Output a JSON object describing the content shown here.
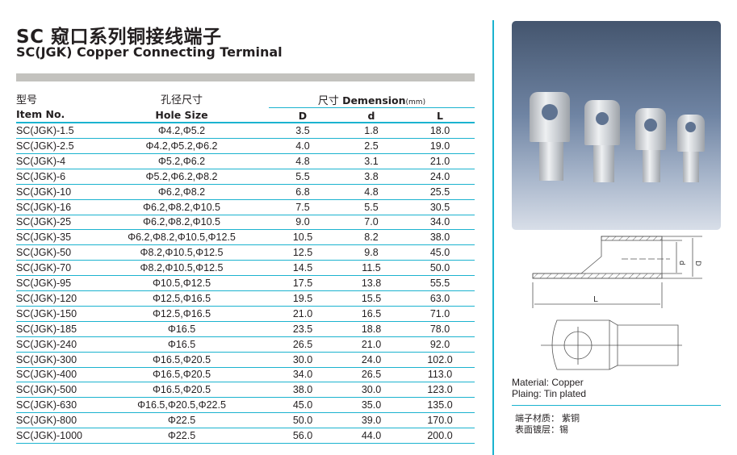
{
  "title_cn": "SC 窥口系列铜接线端子",
  "title_en": "SC(JGK) Copper Connecting Terminal",
  "header": {
    "item_cn": "型号",
    "item_en": "Item No.",
    "hole_cn": "孔径尺寸",
    "hole_en": "Hole Size",
    "dim_cn": "尺寸",
    "dim_en": "Demension",
    "dim_unit": "(mm)",
    "D": "D",
    "d": "d",
    "L": "L"
  },
  "rows": [
    [
      "SC(JGK)-1.5",
      "Φ4.2,Φ5.2",
      "3.5",
      "1.8",
      "18.0"
    ],
    [
      "SC(JGK)-2.5",
      "Φ4.2,Φ5.2,Φ6.2",
      "4.0",
      "2.5",
      "19.0"
    ],
    [
      "SC(JGK)-4",
      "Φ5.2,Φ6.2",
      "4.8",
      "3.1",
      "21.0"
    ],
    [
      "SC(JGK)-6",
      "Φ5.2,Φ6.2,Φ8.2",
      "5.5",
      "3.8",
      "24.0"
    ],
    [
      "SC(JGK)-10",
      "Φ6.2,Φ8.2",
      "6.8",
      "4.8",
      "25.5"
    ],
    [
      "SC(JGK)-16",
      "Φ6.2,Φ8.2,Φ10.5",
      "7.5",
      "5.5",
      "30.5"
    ],
    [
      "SC(JGK)-25",
      "Φ6.2,Φ8.2,Φ10.5",
      "9.0",
      "7.0",
      "34.0"
    ],
    [
      "SC(JGK)-35",
      "Φ6.2,Φ8.2,Φ10.5,Φ12.5",
      "10.5",
      "8.2",
      "38.0"
    ],
    [
      "SC(JGK)-50",
      "Φ8.2,Φ10.5,Φ12.5",
      "12.5",
      "9.8",
      "45.0"
    ],
    [
      "SC(JGK)-70",
      "Φ8.2,Φ10.5,Φ12.5",
      "14.5",
      "11.5",
      "50.0"
    ],
    [
      "SC(JGK)-95",
      "Φ10.5,Φ12.5",
      "17.5",
      "13.8",
      "55.5"
    ],
    [
      "SC(JGK)-120",
      "Φ12.5,Φ16.5",
      "19.5",
      "15.5",
      "63.0"
    ],
    [
      "SC(JGK)-150",
      "Φ12.5,Φ16.5",
      "21.0",
      "16.5",
      "71.0"
    ],
    [
      "SC(JGK)-185",
      "Φ16.5",
      "23.5",
      "18.8",
      "78.0"
    ],
    [
      "SC(JGK)-240",
      "Φ16.5",
      "26.5",
      "21.0",
      "92.0"
    ],
    [
      "SC(JGK)-300",
      "Φ16.5,Φ20.5",
      "30.0",
      "24.0",
      "102.0"
    ],
    [
      "SC(JGK)-400",
      "Φ16.5,Φ20.5",
      "34.0",
      "26.5",
      "113.0"
    ],
    [
      "SC(JGK)-500",
      "Φ16.5,Φ20.5",
      "38.0",
      "30.0",
      "123.0"
    ],
    [
      "SC(JGK)-630",
      "Φ16.5,Φ20.5,Φ22.5",
      "45.0",
      "35.0",
      "135.0"
    ],
    [
      "SC(JGK)-800",
      "Φ22.5",
      "50.0",
      "39.0",
      "170.0"
    ],
    [
      "SC(JGK)-1000",
      "Φ22.5",
      "56.0",
      "44.0",
      "200.0"
    ]
  ],
  "drawing": {
    "L": "L",
    "d": "d",
    "D": "D"
  },
  "material_en": "Material: Copper",
  "plating_en": "Plaing:  Tin plated",
  "material_cn": "端子材质：  紫铜",
  "plating_cn": "表面镀层：锡",
  "colors": {
    "accent": "#1bb3cf",
    "bar": "#c3c2be"
  }
}
